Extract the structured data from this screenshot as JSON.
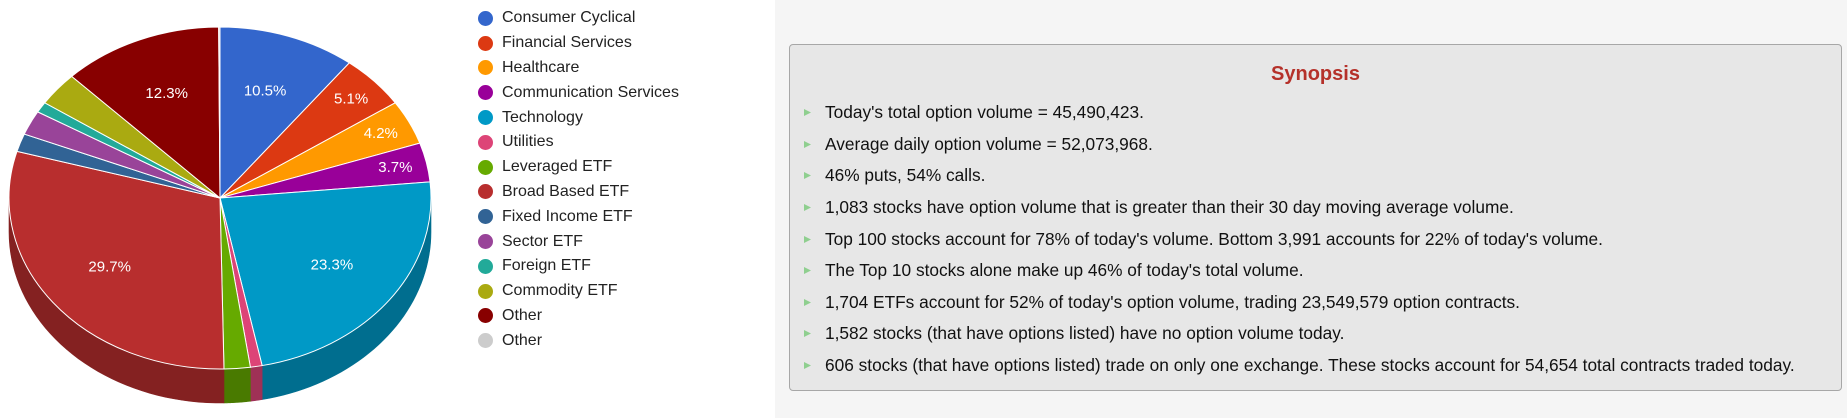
{
  "chart_data": {
    "type": "pie",
    "slices": [
      {
        "label": "Consumer Cyclical",
        "value": 10.5,
        "color": "#3366cc",
        "value_label": "10.5%"
      },
      {
        "label": "Financial Services",
        "value": 5.1,
        "color": "#dc3912",
        "value_label": "5.1%"
      },
      {
        "label": "Healthcare",
        "value": 4.2,
        "color": "#ff9900",
        "value_label": "4.2%"
      },
      {
        "label": "Communication Services",
        "value": 3.7,
        "color": "#990099",
        "value_label": "3.7%"
      },
      {
        "label": "Technology",
        "value": 23.3,
        "color": "#0099c6",
        "value_label": "23.3%"
      },
      {
        "label": "Utilities",
        "value": 0.9,
        "color": "#dd4477",
        "value_label": ""
      },
      {
        "label": "Leveraged ETF",
        "value": 2.0,
        "color": "#66aa00",
        "value_label": ""
      },
      {
        "label": "Broad Based ETF",
        "value": 29.7,
        "color": "#b82e2e",
        "value_label": "29.7%"
      },
      {
        "label": "Fixed Income ETF",
        "value": 1.7,
        "color": "#316395",
        "value_label": ""
      },
      {
        "label": "Sector ETF",
        "value": 2.3,
        "color": "#994499",
        "value_label": ""
      },
      {
        "label": "Foreign ETF",
        "value": 1.0,
        "color": "#22aa99",
        "value_label": ""
      },
      {
        "label": "Commodity ETF",
        "value": 3.2,
        "color": "#aaaa11",
        "value_label": ""
      },
      {
        "label": "Other",
        "value": 12.3,
        "color": "#880000",
        "value_label": "12.3%"
      },
      {
        "label": "Other",
        "value": 0.1,
        "color": "#cccccc",
        "value_label": ""
      }
    ],
    "start_angle_deg": 0,
    "direction": "clockwise",
    "style": "3d",
    "legend_position": "right"
  },
  "synopsis": {
    "title": "Synopsis",
    "bullet_color": "#8fcf8f",
    "items": [
      "Today's total option volume = 45,490,423.",
      "Average daily option volume = 52,073,968.",
      "46% puts, 54% calls.",
      "1,083 stocks have option volume that is greater than their 30 day moving average volume.",
      "Top 100 stocks account for 78% of today's volume. Bottom 3,991 accounts for 22% of today's volume.",
      "The Top 10 stocks alone make up 46% of today's total volume.",
      "1,704 ETFs account for 52% of today's option volume, trading 23,549,579 option contracts.",
      "1,582 stocks (that have options listed) have no option volume today.",
      "606 stocks (that have options listed) trade on only one exchange. These stocks account for 54,654 total contracts traded today."
    ]
  }
}
